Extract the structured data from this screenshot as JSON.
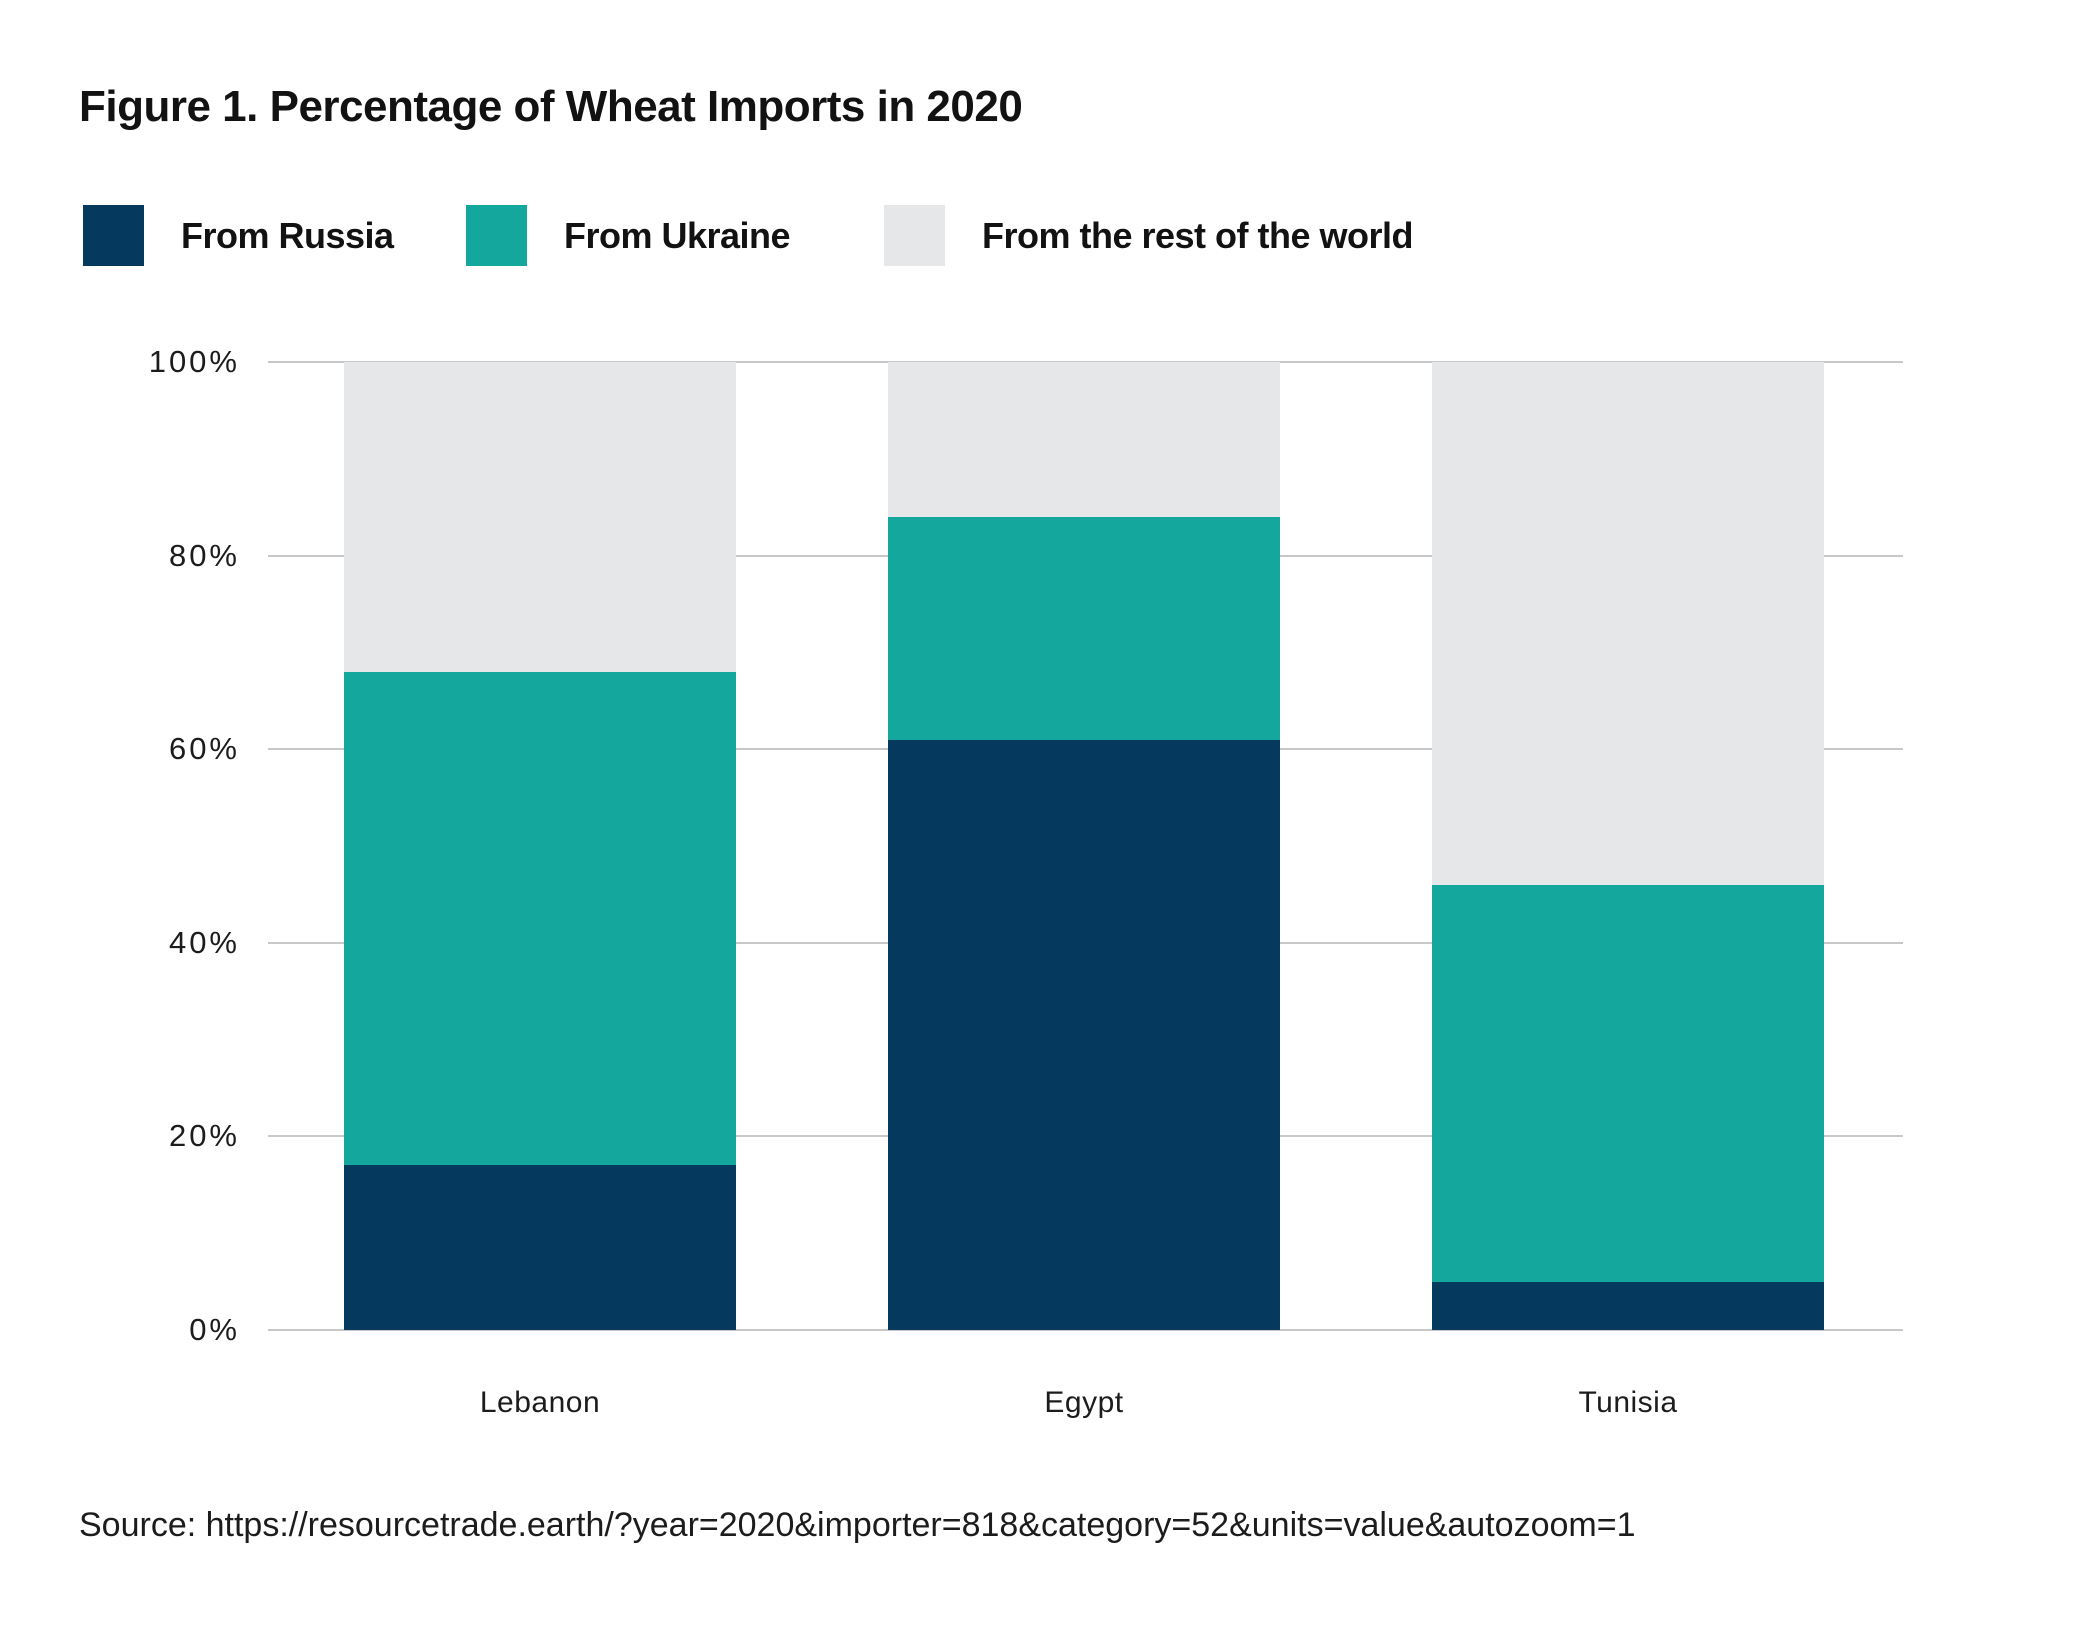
{
  "title": "Figure 1. Percentage of Wheat Imports in 2020",
  "legend": {
    "items": [
      {
        "label": "From Russia",
        "color": "#05395d"
      },
      {
        "label": "From Ukraine",
        "color": "#14a79e"
      },
      {
        "label": "From the rest of the world",
        "color": "#e6e7e8"
      }
    ]
  },
  "source": "Source: https://resourcetrade.earth/?year=2020&importer=818&category=52&units=value&autozoom=1",
  "chart_data": {
    "type": "bar",
    "stacked": true,
    "title": "Figure 1. Percentage of Wheat Imports in 2020",
    "categories": [
      "Lebanon",
      "Egypt",
      "Tunisia"
    ],
    "series": [
      {
        "name": "From Russia",
        "color": "#05395d",
        "values": [
          17,
          61,
          5
        ]
      },
      {
        "name": "From Ukraine",
        "color": "#14a79e",
        "values": [
          51,
          23,
          41
        ]
      },
      {
        "name": "From the rest of the world",
        "color": "#e6e7e8",
        "values": [
          32,
          16,
          54
        ]
      }
    ],
    "cumulative_tops_percent": {
      "Lebanon": {
        "russia_top": 17,
        "ukraine_top": 68,
        "rest_top": 100
      },
      "Egypt": {
        "russia_top": 61,
        "ukraine_top": 84,
        "rest_top": 100
      },
      "Tunisia": {
        "russia_top": 5,
        "ukraine_top": 46,
        "rest_top": 100
      }
    },
    "xlabel": "",
    "ylabel": "",
    "y_ticks": [
      "100%",
      "80%",
      "60%",
      "40%",
      "20%",
      "0%"
    ],
    "ylim": [
      0,
      100
    ],
    "grid": true,
    "gridline_color": "#c6c8c9",
    "legend_position": "top-left"
  }
}
